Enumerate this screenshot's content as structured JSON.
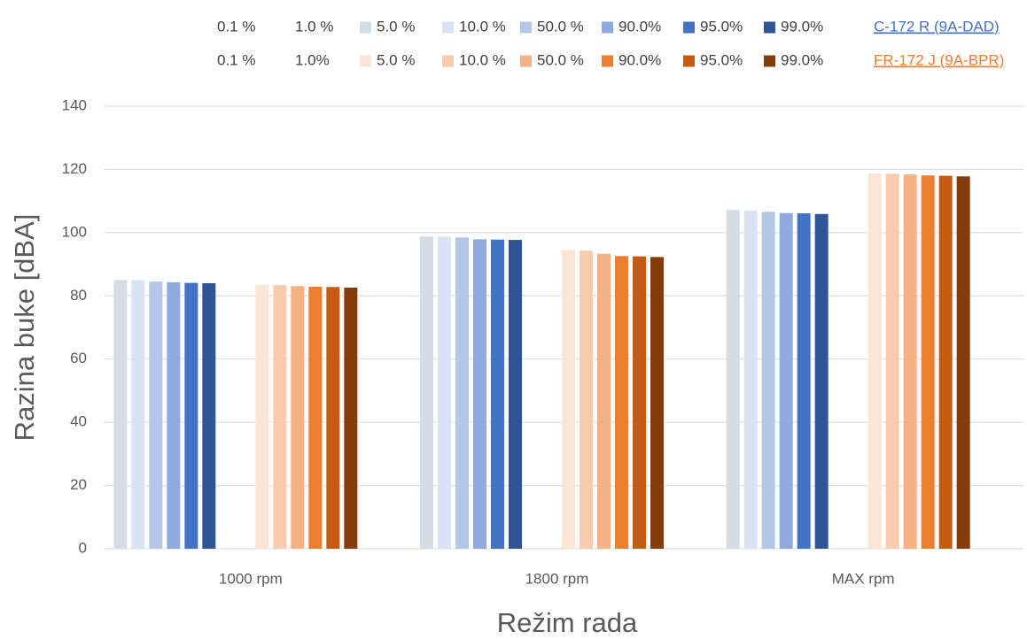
{
  "chart_data": {
    "type": "bar",
    "x_label": "Režim rada",
    "y_label": "Razina buke [dBA]",
    "categories": [
      "1000 rpm",
      "1800 rpm",
      "MAX rpm"
    ],
    "ylim": [
      0,
      140
    ],
    "yticks": [
      0,
      20,
      40,
      60,
      80,
      100,
      120,
      140
    ],
    "grid": true,
    "legend_groups": [
      {
        "label": "C-172 R (9A-DAD)",
        "color": "#4472c4"
      },
      {
        "label": "FR-172 J (9A-BPR)",
        "color": "#ed7d31"
      }
    ],
    "series": [
      {
        "name": "0.1 %",
        "color": "#ffffff",
        "values": [
          null,
          null,
          null
        ]
      },
      {
        "name": "1.0 %",
        "color": "#ffffff",
        "values": [
          null,
          null,
          null
        ]
      },
      {
        "name": "5.0 %",
        "color": "#d6dce5",
        "values": [
          85.0,
          98.8,
          107.2
        ]
      },
      {
        "name": "10.0 %",
        "color": "#dae3f3",
        "values": [
          85.0,
          98.7,
          107.0
        ]
      },
      {
        "name": "50.0 %",
        "color": "#b4c7e7",
        "values": [
          84.5,
          98.5,
          106.6
        ]
      },
      {
        "name": "90.0%",
        "color": "#8faadc",
        "values": [
          84.3,
          97.9,
          106.2
        ]
      },
      {
        "name": "95.0%",
        "color": "#4472c4",
        "values": [
          84.1,
          97.8,
          106.1
        ]
      },
      {
        "name": "99.0%",
        "color": "#2f5597",
        "values": [
          84.0,
          97.7,
          105.9
        ]
      },
      {
        "name": "0.1 %",
        "color": "#ffffff",
        "values": [
          null,
          null,
          null
        ]
      },
      {
        "name": "1.0%",
        "color": "#ffffff",
        "values": [
          null,
          null,
          null
        ]
      },
      {
        "name": "5.0 %",
        "color": "#fbe5d6",
        "values": [
          83.5,
          94.5,
          118.7
        ]
      },
      {
        "name": "10.0 %",
        "color": "#f8cbad",
        "values": [
          83.4,
          94.3,
          118.6
        ]
      },
      {
        "name": "50.0 %",
        "color": "#f4b183",
        "values": [
          83.1,
          93.3,
          118.4
        ]
      },
      {
        "name": "90.0%",
        "color": "#ed7d31",
        "values": [
          82.9,
          92.6,
          118.1
        ]
      },
      {
        "name": "95.0%",
        "color": "#c55a11",
        "values": [
          82.8,
          92.5,
          118.0
        ]
      },
      {
        "name": "99.0%",
        "color": "#843c0c",
        "values": [
          82.6,
          92.3,
          117.8
        ]
      }
    ]
  }
}
